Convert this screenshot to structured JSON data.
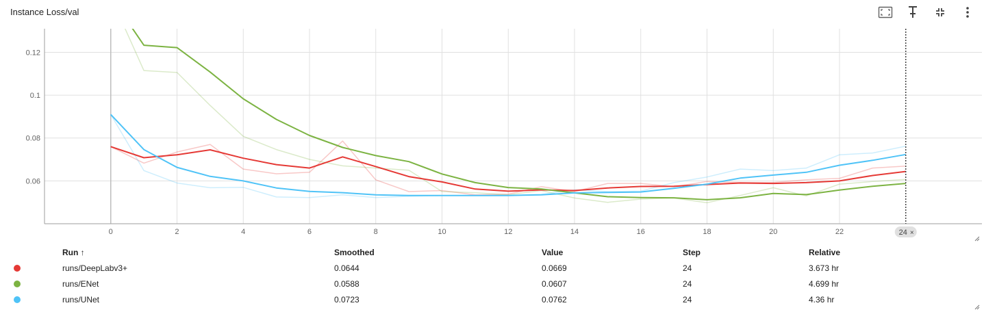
{
  "card": {
    "title": "Instance Loss/val"
  },
  "toolbar": {
    "icons": [
      "fit-domain-icon",
      "pin-icon",
      "collapse-icon",
      "more-vert-icon"
    ]
  },
  "chart_data": {
    "type": "line",
    "title": "Instance Loss/val",
    "xlabel": "",
    "ylabel": "",
    "xlim": [
      -2,
      26.3
    ],
    "ylim": [
      0.04,
      0.131
    ],
    "xticks": [
      0,
      2,
      4,
      6,
      8,
      10,
      12,
      14,
      16,
      18,
      20,
      22
    ],
    "yticks": [
      0.06,
      0.08,
      0.1,
      0.12
    ],
    "ytick_labels": [
      "0.06",
      "0.08",
      "0.1",
      "0.12"
    ],
    "grid": true,
    "cursor_step": 24,
    "cursor_label": "24",
    "series": [
      {
        "name": "runs/DeepLabv3+",
        "color": "#e53935",
        "x": [
          0,
          1,
          2,
          3,
          4,
          5,
          6,
          7,
          8,
          9,
          10,
          11,
          12,
          13,
          14,
          15,
          16,
          17,
          18,
          19,
          20,
          21,
          22,
          23,
          24
        ],
        "raw": [
          0.076,
          0.0683,
          0.0735,
          0.077,
          0.0655,
          0.0633,
          0.064,
          0.0786,
          0.0605,
          0.055,
          0.0555,
          0.0535,
          0.0538,
          0.0573,
          0.055,
          0.0588,
          0.0588,
          0.0573,
          0.0597,
          0.0593,
          0.0593,
          0.0605,
          0.0612,
          0.066,
          0.0669
        ],
        "smoothed": [
          0.076,
          0.0708,
          0.0722,
          0.0745,
          0.0706,
          0.0676,
          0.066,
          0.0712,
          0.0667,
          0.062,
          0.0595,
          0.0562,
          0.0552,
          0.0558,
          0.0555,
          0.0567,
          0.0574,
          0.0575,
          0.0583,
          0.059,
          0.0588,
          0.0592,
          0.06,
          0.0625,
          0.0644
        ]
      },
      {
        "name": "runs/ENet",
        "color": "#7cb342",
        "x": [
          0,
          1,
          2,
          3,
          4,
          5,
          6,
          7,
          8,
          9,
          10,
          11,
          12,
          13,
          14,
          15,
          16,
          17,
          18,
          19,
          20,
          21,
          22,
          23,
          24
        ],
        "raw": [
          0.146,
          0.1115,
          0.1106,
          0.0952,
          0.0808,
          0.0746,
          0.07,
          0.067,
          0.066,
          0.065,
          0.055,
          0.0545,
          0.0535,
          0.0555,
          0.052,
          0.05,
          0.0515,
          0.052,
          0.0498,
          0.0532,
          0.0568,
          0.053,
          0.0585,
          0.0597,
          0.0607
        ],
        "smoothed": [
          0.146,
          0.1233,
          0.1222,
          0.1108,
          0.0983,
          0.0887,
          0.0812,
          0.0756,
          0.0718,
          0.069,
          0.0632,
          0.0592,
          0.0569,
          0.0562,
          0.0544,
          0.0526,
          0.0522,
          0.0521,
          0.0512,
          0.0521,
          0.0541,
          0.0536,
          0.0557,
          0.0575,
          0.0588
        ]
      },
      {
        "name": "runs/UNet",
        "color": "#4fc3f7",
        "x": [
          0,
          1,
          2,
          3,
          4,
          5,
          6,
          7,
          8,
          9,
          10,
          11,
          12,
          13,
          14,
          15,
          16,
          17,
          18,
          19,
          20,
          21,
          22,
          23,
          24
        ],
        "raw": [
          0.091,
          0.0648,
          0.059,
          0.0568,
          0.057,
          0.0525,
          0.0522,
          0.0535,
          0.0522,
          0.0528,
          0.0532,
          0.0532,
          0.0532,
          0.0537,
          0.0558,
          0.055,
          0.0552,
          0.0592,
          0.0618,
          0.0655,
          0.0648,
          0.066,
          0.0722,
          0.073,
          0.0762
        ],
        "smoothed": [
          0.091,
          0.0746,
          0.0663,
          0.0621,
          0.06,
          0.0567,
          0.0551,
          0.0545,
          0.0535,
          0.0532,
          0.0532,
          0.0532,
          0.0532,
          0.0535,
          0.0544,
          0.0546,
          0.0548,
          0.0565,
          0.0585,
          0.0613,
          0.0627,
          0.064,
          0.0673,
          0.0696,
          0.0723
        ]
      }
    ]
  },
  "table": {
    "headers": {
      "run": "Run ↑",
      "smoothed": "Smoothed",
      "value": "Value",
      "step": "Step",
      "relative": "Relative"
    },
    "rows": [
      {
        "run": "runs/DeepLabv3+",
        "color": "#e53935",
        "smoothed": "0.0644",
        "value": "0.0669",
        "step": "24",
        "relative": "3.673 hr"
      },
      {
        "run": "runs/ENet",
        "color": "#7cb342",
        "smoothed": "0.0588",
        "value": "0.0607",
        "step": "24",
        "relative": "4.699 hr"
      },
      {
        "run": "runs/UNet",
        "color": "#4fc3f7",
        "smoothed": "0.0723",
        "value": "0.0762",
        "step": "24",
        "relative": "4.36 hr"
      }
    ]
  }
}
